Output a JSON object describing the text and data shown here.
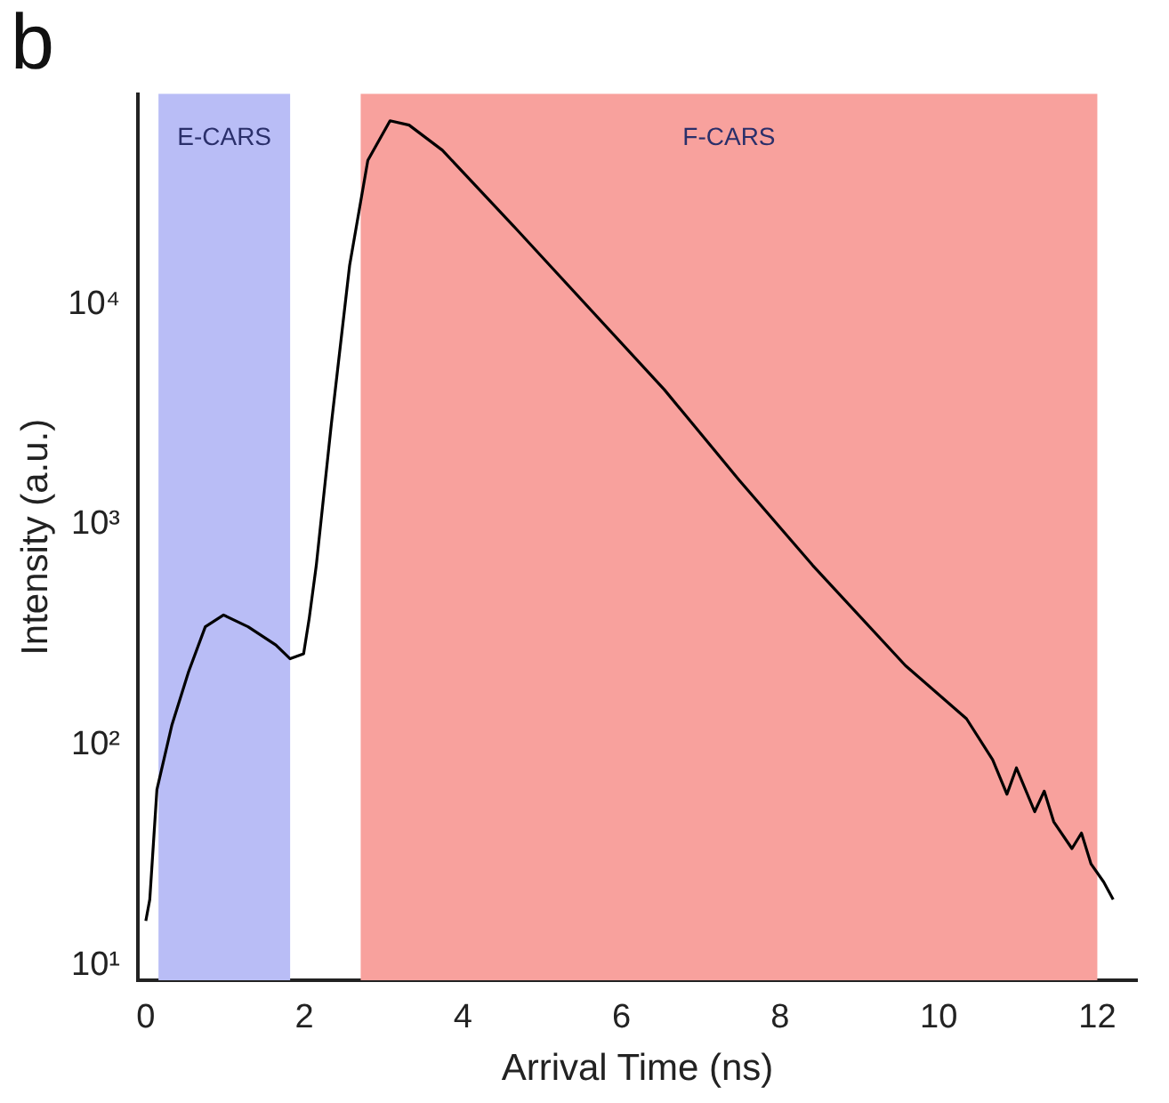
{
  "chart_data": {
    "type": "line",
    "title": "b",
    "xlabel": "Arrival Time (ns)",
    "ylabel": "Intensity (a.u.)",
    "x": [
      0.0,
      0.05,
      0.14,
      0.33,
      0.54,
      0.75,
      0.98,
      1.29,
      1.64,
      1.82,
      1.99,
      2.06,
      2.15,
      2.34,
      2.57,
      2.8,
      3.08,
      3.32,
      3.74,
      4.67,
      6.54,
      7.48,
      8.41,
      9.58,
      10.35,
      10.68,
      10.86,
      10.98,
      11.21,
      11.33,
      11.45,
      11.68,
      11.8,
      11.92,
      12.08,
      12.2
    ],
    "series": [
      {
        "color": "#000000",
        "values": [
          16,
          20,
          63,
          124,
          216,
          345,
          390,
          345,
          285,
          247,
          260,
          375,
          655,
          2870,
          15000,
          45000,
          68000,
          65000,
          50000,
          22000,
          4100,
          1600,
          655,
          230,
          132,
          86,
          60,
          79,
          50,
          62,
          45,
          34,
          40,
          29,
          24,
          20
        ]
      }
    ],
    "log": "y",
    "xlim": [
      -0.1,
      12.5
    ],
    "xticks": [
      0,
      2,
      4,
      6,
      8,
      10,
      12
    ],
    "ylim": [
      8.6,
      90000
    ],
    "yticks": [
      {
        "value": 10,
        "label": "10¹"
      },
      {
        "value": 100,
        "label": "10²"
      },
      {
        "value": 1000,
        "label": "10³"
      },
      {
        "value": 10000,
        "label": "10⁴"
      }
    ],
    "bands": [
      {
        "axis": "x",
        "from": 0.16,
        "to": 1.82,
        "label": "E-CARS",
        "color": "#b9bdf6"
      },
      {
        "axis": "x",
        "from": 2.71,
        "to": 12.0,
        "label": "F-CARS",
        "color": "#f8a19d"
      }
    ],
    "grid": false,
    "legend": false,
    "marker": "none",
    "line_style": "solid"
  }
}
